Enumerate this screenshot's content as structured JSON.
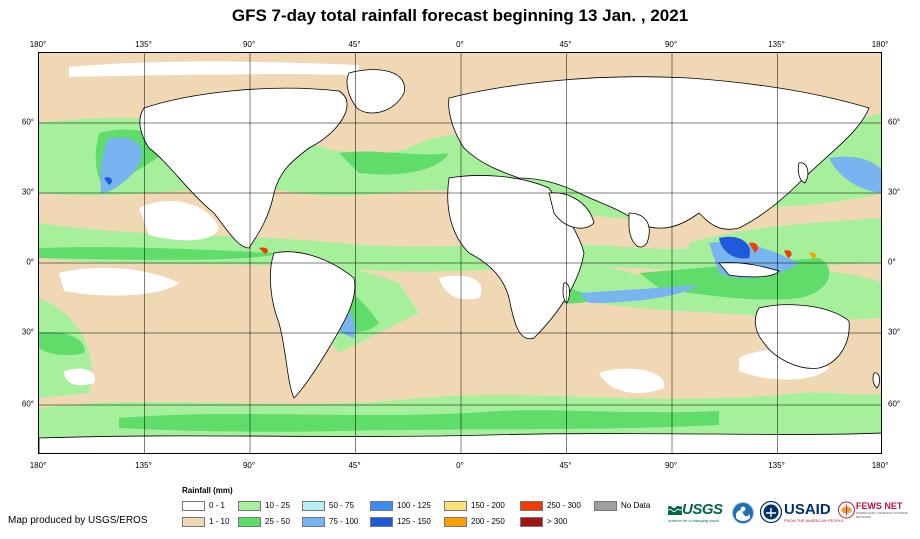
{
  "title": "GFS 7-day total rainfall forecast beginning 13 Jan. , 2021",
  "map": {
    "lon_labels": [
      "180°",
      "135°",
      "90°",
      "45°",
      "0°",
      "45°",
      "90°",
      "135°",
      "180°"
    ],
    "lat_labels": [
      "60°",
      "30°",
      "0°",
      "30°",
      "60°"
    ],
    "colors": {
      "ocean_dry": "#ffffff",
      "land": "#ffffff",
      "border": "#000000",
      "grid": "#000000"
    }
  },
  "legend": {
    "title": "Rainfall (mm)",
    "items": [
      {
        "label": "0 - 1",
        "color": "#ffffff"
      },
      {
        "label": "1 - 10",
        "color": "#f0d8b4"
      },
      {
        "label": "10 - 25",
        "color": "#a6f09b"
      },
      {
        "label": "25 - 50",
        "color": "#5fdc6a"
      },
      {
        "label": "50 - 75",
        "color": "#b4f0f5"
      },
      {
        "label": "75 - 100",
        "color": "#78b4f0"
      },
      {
        "label": "100 - 125",
        "color": "#3c8cf0"
      },
      {
        "label": "125 - 150",
        "color": "#1e5adc"
      },
      {
        "label": "150 - 200",
        "color": "#ffe178"
      },
      {
        "label": "200 - 250",
        "color": "#ffa000"
      },
      {
        "label": "250 - 300",
        "color": "#f03c00"
      },
      {
        "label": "> 300",
        "color": "#a01414"
      },
      {
        "label": "No Data",
        "color": "#a0a0a0"
      }
    ]
  },
  "credit": "Map produced by USGS/EROS",
  "logos": {
    "usgs": {
      "name": "USGS",
      "tagline": "science for a changing world"
    },
    "noaa": {
      "name": "NOAA"
    },
    "usaid": {
      "name": "USAID",
      "tagline": "FROM THE AMERICAN PEOPLE"
    },
    "fews": {
      "name": "FEWS NET",
      "tagline": "FAMINE EARLY WARNING SYSTEMS NETWORK"
    }
  }
}
